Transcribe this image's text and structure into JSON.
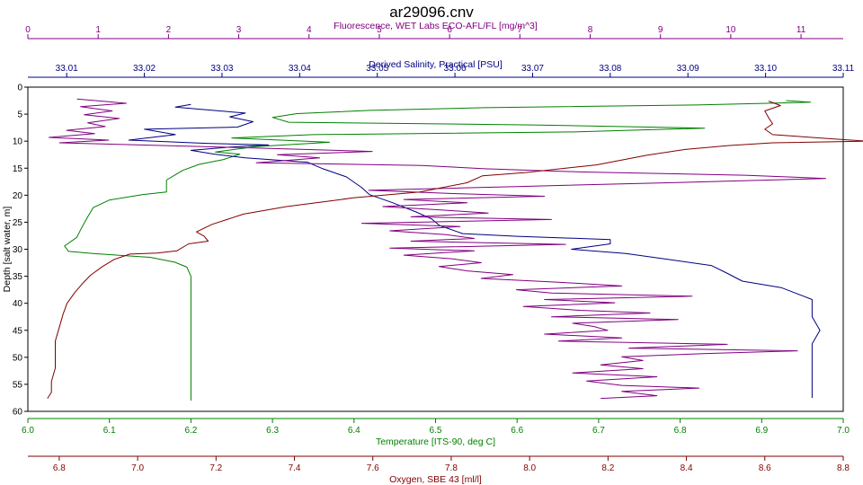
{
  "chart_data": {
    "type": "line",
    "title": "ar29096.cnv",
    "y_axis": {
      "label": "Depth [salt water, m]",
      "range": [
        0,
        60
      ],
      "inverted": true,
      "ticks": [
        0,
        5,
        10,
        15,
        20,
        25,
        30,
        35,
        40,
        45,
        50,
        55,
        60
      ]
    },
    "x_axes": [
      {
        "id": "fluorescence",
        "label": "Fluorescence, WET Labs ECO-AFL/FL [mg/m^3]",
        "position": "top-outer",
        "color": "#800080",
        "range": [
          0,
          11.6
        ],
        "ticks": [
          0,
          1,
          2,
          3,
          4,
          5,
          6,
          7,
          8,
          9,
          10,
          11
        ],
        "tick_labels": [
          "0",
          "1",
          "2",
          "3",
          "4",
          "5",
          "6",
          "7",
          "8",
          "9",
          "10",
          "11"
        ]
      },
      {
        "id": "salinity",
        "label": "Derived Salinity, Practical [PSU]",
        "position": "top-inner",
        "color": "#000080",
        "range": [
          33.005,
          33.11
        ],
        "ticks": [
          33.01,
          33.02,
          33.03,
          33.04,
          33.05,
          33.06,
          33.07,
          33.08,
          33.09,
          33.1,
          33.11
        ],
        "tick_labels": [
          "33.01",
          "33.02",
          "33.03",
          "33.04",
          "33.05",
          "33.06",
          "33.07",
          "33.08",
          "33.09",
          "33.10",
          "33.11"
        ]
      },
      {
        "id": "temperature",
        "label": "Temperature [ITS-90, deg C]",
        "position": "bottom-inner",
        "color": "#008000",
        "range": [
          6.0,
          7.0
        ],
        "ticks": [
          6.0,
          6.1,
          6.2,
          6.3,
          6.4,
          6.5,
          6.6,
          6.7,
          6.8,
          6.9,
          7.0
        ],
        "tick_labels": [
          "6.0",
          "6.1",
          "6.2",
          "6.3",
          "6.4",
          "6.5",
          "6.6",
          "6.7",
          "6.8",
          "6.9",
          "7.0"
        ]
      },
      {
        "id": "oxygen",
        "label": "Oxygen, SBE 43 [ml/l]",
        "position": "bottom-outer",
        "color": "#800000",
        "range": [
          6.72,
          8.8
        ],
        "ticks": [
          6.8,
          7.0,
          7.2,
          7.4,
          7.6,
          7.8,
          8.0,
          8.2,
          8.4,
          8.6,
          8.8
        ],
        "tick_labels": [
          "6.8",
          "7.0",
          "7.2",
          "7.4",
          "7.6",
          "7.8",
          "8.0",
          "8.2",
          "8.4",
          "8.6",
          "8.8"
        ]
      }
    ],
    "series": [
      {
        "axis": "temperature",
        "color": "#008000",
        "points": [
          [
            6.93,
            2.5
          ],
          [
            6.96,
            2.8
          ],
          [
            6.82,
            3.3
          ],
          [
            6.56,
            3.8
          ],
          [
            6.42,
            4.3
          ],
          [
            6.33,
            4.9
          ],
          [
            6.3,
            5.6
          ],
          [
            6.32,
            6.5
          ],
          [
            6.62,
            7.0
          ],
          [
            6.83,
            7.6
          ],
          [
            6.67,
            8.3
          ],
          [
            6.35,
            8.8
          ],
          [
            6.25,
            9.4
          ],
          [
            6.37,
            10.2
          ],
          [
            6.28,
            11.0
          ],
          [
            6.23,
            12.0
          ],
          [
            6.26,
            12.4
          ],
          [
            6.24,
            13.4
          ],
          [
            6.21,
            14.3
          ],
          [
            6.19,
            15.4
          ],
          [
            6.18,
            16.3
          ],
          [
            6.17,
            17.2
          ],
          [
            6.17,
            18.4
          ],
          [
            6.17,
            19.4
          ],
          [
            6.14,
            19.9
          ],
          [
            6.1,
            20.9
          ],
          [
            6.08,
            22.3
          ],
          [
            6.075,
            23.6
          ],
          [
            6.07,
            24.9
          ],
          [
            6.065,
            26.3
          ],
          [
            6.06,
            27.8
          ],
          [
            6.045,
            29.4
          ],
          [
            6.05,
            30.4
          ],
          [
            6.08,
            30.8
          ],
          [
            6.1,
            31.0
          ],
          [
            6.15,
            31.5
          ],
          [
            6.18,
            32.4
          ],
          [
            6.195,
            33.3
          ],
          [
            6.2,
            35.0
          ],
          [
            6.2,
            38.0
          ],
          [
            6.2,
            41.0
          ],
          [
            6.2,
            44.0
          ],
          [
            6.2,
            47.0
          ],
          [
            6.2,
            50.0
          ],
          [
            6.2,
            53.0
          ],
          [
            6.2,
            56.0
          ],
          [
            6.2,
            58.0
          ]
        ]
      },
      {
        "axis": "salinity",
        "color": "#000080",
        "points": [
          [
            33.026,
            3.2
          ],
          [
            33.024,
            3.7
          ],
          [
            33.028,
            4.2
          ],
          [
            33.033,
            4.8
          ],
          [
            33.031,
            5.5
          ],
          [
            33.034,
            6.4
          ],
          [
            33.032,
            7.4
          ],
          [
            33.02,
            7.8
          ],
          [
            33.024,
            8.8
          ],
          [
            33.018,
            9.8
          ],
          [
            33.028,
            10.4
          ],
          [
            33.036,
            10.7
          ],
          [
            33.031,
            11.1
          ],
          [
            33.026,
            11.7
          ],
          [
            33.029,
            12.4
          ],
          [
            33.033,
            13.1
          ],
          [
            33.041,
            13.9
          ],
          [
            33.043,
            15.1
          ],
          [
            33.046,
            16.6
          ],
          [
            33.048,
            18.6
          ],
          [
            33.049,
            19.9
          ],
          [
            33.052,
            21.4
          ],
          [
            33.055,
            23.1
          ],
          [
            33.057,
            24.4
          ],
          [
            33.058,
            25.6
          ],
          [
            33.061,
            27.1
          ],
          [
            33.068,
            27.6
          ],
          [
            33.08,
            28.2
          ],
          [
            33.08,
            29.0
          ],
          [
            33.075,
            30.0
          ],
          [
            33.082,
            30.8
          ],
          [
            33.087,
            31.8
          ],
          [
            33.093,
            33.0
          ],
          [
            33.095,
            34.4
          ],
          [
            33.097,
            35.9
          ],
          [
            33.102,
            37.1
          ],
          [
            33.104,
            38.2
          ],
          [
            33.106,
            39.3
          ],
          [
            33.106,
            40.5
          ],
          [
            33.106,
            42.5
          ],
          [
            33.107,
            45.0
          ],
          [
            33.106,
            47.5
          ],
          [
            33.106,
            50.0
          ],
          [
            33.106,
            52.5
          ],
          [
            33.106,
            55.0
          ],
          [
            33.106,
            57.5
          ]
        ]
      },
      {
        "axis": "fluorescence",
        "color": "#800080",
        "points": [
          [
            0.7,
            2.2
          ],
          [
            1.4,
            3.0
          ],
          [
            0.75,
            3.6
          ],
          [
            1.2,
            4.4
          ],
          [
            0.8,
            5.1
          ],
          [
            1.3,
            5.8
          ],
          [
            0.85,
            6.6
          ],
          [
            1.1,
            7.3
          ],
          [
            0.55,
            8.0
          ],
          [
            0.95,
            8.6
          ],
          [
            0.3,
            9.3
          ],
          [
            1.15,
            9.8
          ],
          [
            0.45,
            10.3
          ],
          [
            1.6,
            10.7
          ],
          [
            3.05,
            11.2
          ],
          [
            4.9,
            11.9
          ],
          [
            3.55,
            12.5
          ],
          [
            4.15,
            13.1
          ],
          [
            3.25,
            14.0
          ],
          [
            5.6,
            14.5
          ],
          [
            6.5,
            15.1
          ],
          [
            7.9,
            15.7
          ],
          [
            10.2,
            16.3
          ],
          [
            11.35,
            16.9
          ],
          [
            9.4,
            17.6
          ],
          [
            6.95,
            18.4
          ],
          [
            4.85,
            19.1
          ],
          [
            6.05,
            19.7
          ],
          [
            7.35,
            20.2
          ],
          [
            5.35,
            20.8
          ],
          [
            6.25,
            21.4
          ],
          [
            5.05,
            22.1
          ],
          [
            5.85,
            22.7
          ],
          [
            6.55,
            23.3
          ],
          [
            5.45,
            24.0
          ],
          [
            7.45,
            24.5
          ],
          [
            4.75,
            25.2
          ],
          [
            6.15,
            25.8
          ],
          [
            5.15,
            26.6
          ],
          [
            5.95,
            27.3
          ],
          [
            6.35,
            28.0
          ],
          [
            5.45,
            28.5
          ],
          [
            7.65,
            29.1
          ],
          [
            5.15,
            29.8
          ],
          [
            6.35,
            30.3
          ],
          [
            5.35,
            31.1
          ],
          [
            6.05,
            31.8
          ],
          [
            6.45,
            32.5
          ],
          [
            5.85,
            33.2
          ],
          [
            6.25,
            34.0
          ],
          [
            6.9,
            34.7
          ],
          [
            6.45,
            35.4
          ],
          [
            7.55,
            36.1
          ],
          [
            8.45,
            36.8
          ],
          [
            6.95,
            37.5
          ],
          [
            7.45,
            38.1
          ],
          [
            9.45,
            38.7
          ],
          [
            7.35,
            39.3
          ],
          [
            8.35,
            39.9
          ],
          [
            7.05,
            40.6
          ],
          [
            7.85,
            41.3
          ],
          [
            8.85,
            41.8
          ],
          [
            7.45,
            42.5
          ],
          [
            9.25,
            43.0
          ],
          [
            7.75,
            43.7
          ],
          [
            8.05,
            44.3
          ],
          [
            8.25,
            45.0
          ],
          [
            7.35,
            45.7
          ],
          [
            8.45,
            46.4
          ],
          [
            7.55,
            47.0
          ],
          [
            9.95,
            47.6
          ],
          [
            8.55,
            48.3
          ],
          [
            10.95,
            48.8
          ],
          [
            9.65,
            49.3
          ],
          [
            8.45,
            49.9
          ],
          [
            8.75,
            50.6
          ],
          [
            8.15,
            51.4
          ],
          [
            8.75,
            52.1
          ],
          [
            7.75,
            52.9
          ],
          [
            8.95,
            53.6
          ],
          [
            7.95,
            54.4
          ],
          [
            8.45,
            55.2
          ],
          [
            9.55,
            55.7
          ],
          [
            8.45,
            56.3
          ],
          [
            8.95,
            57.1
          ],
          [
            8.15,
            57.6
          ]
        ]
      },
      {
        "axis": "oxygen",
        "color": "#800000",
        "points": [
          [
            8.61,
            2.6
          ],
          [
            8.64,
            3.4
          ],
          [
            8.6,
            4.4
          ],
          [
            8.61,
            5.7
          ],
          [
            8.62,
            6.8
          ],
          [
            8.6,
            7.8
          ],
          [
            8.62,
            8.8
          ],
          [
            8.76,
            9.5
          ],
          [
            8.86,
            10.0
          ],
          [
            8.62,
            10.3
          ],
          [
            8.51,
            10.8
          ],
          [
            8.4,
            11.5
          ],
          [
            8.3,
            12.6
          ],
          [
            8.17,
            14.4
          ],
          [
            7.99,
            15.8
          ],
          [
            7.88,
            16.4
          ],
          [
            7.84,
            17.7
          ],
          [
            7.72,
            19.4
          ],
          [
            7.55,
            20.5
          ],
          [
            7.52,
            20.8
          ],
          [
            7.38,
            22.1
          ],
          [
            7.27,
            23.5
          ],
          [
            7.19,
            25.4
          ],
          [
            7.15,
            26.8
          ],
          [
            7.17,
            27.6
          ],
          [
            7.18,
            28.5
          ],
          [
            7.13,
            29.0
          ],
          [
            7.1,
            30.3
          ],
          [
            7.05,
            30.7
          ],
          [
            6.98,
            30.9
          ],
          [
            6.94,
            31.9
          ],
          [
            6.91,
            33.2
          ],
          [
            6.88,
            34.8
          ],
          [
            6.86,
            36.3
          ],
          [
            6.84,
            38.0
          ],
          [
            6.82,
            40.0
          ],
          [
            6.81,
            42.0
          ],
          [
            6.8,
            44.5
          ],
          [
            6.79,
            47.0
          ],
          [
            6.79,
            49.5
          ],
          [
            6.79,
            52.0
          ],
          [
            6.78,
            54.5
          ],
          [
            6.78,
            56.5
          ],
          [
            6.77,
            57.6
          ]
        ]
      }
    ]
  }
}
